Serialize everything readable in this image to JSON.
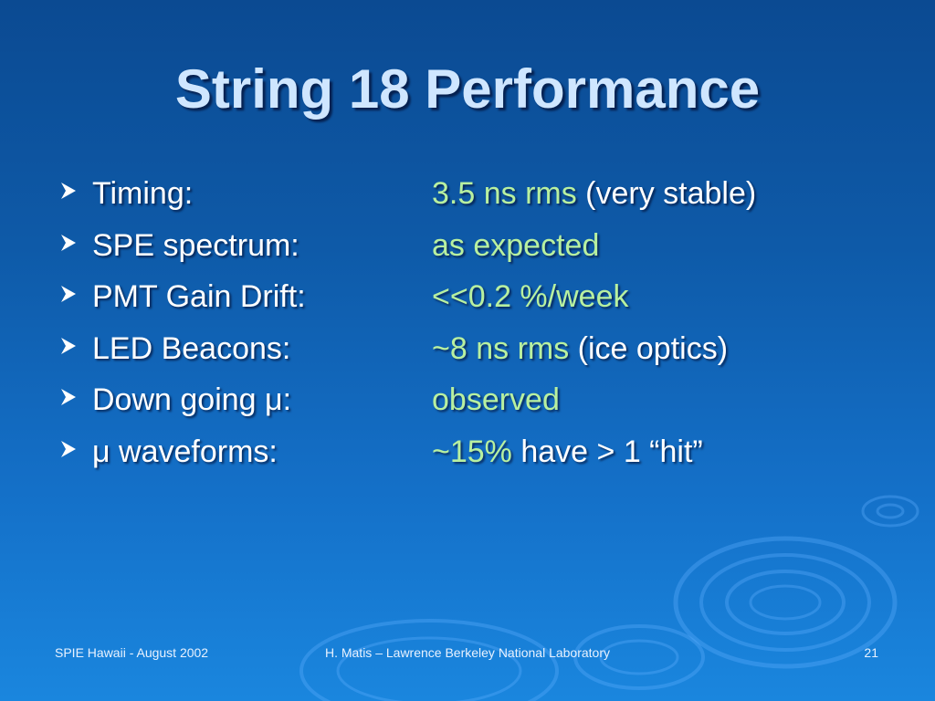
{
  "slide": {
    "title": "String 18 Performance",
    "items": [
      {
        "label": "Timing:",
        "value_highlight": "3.5 ns rms",
        "value_rest": " (very stable)"
      },
      {
        "label": "SPE spectrum:",
        "value_highlight": "as expected",
        "value_rest": ""
      },
      {
        "label": "PMT Gain Drift:",
        "value_highlight": "<<0.2 %/week",
        "value_rest": ""
      },
      {
        "label": "LED Beacons:",
        "value_highlight": "~8 ns rms",
        "value_rest": " (ice optics)"
      },
      {
        "label": "Down going μ:",
        "value_highlight": "observed",
        "value_rest": ""
      },
      {
        "label": "μ waveforms:",
        "value_highlight": "~15%",
        "value_rest": " have > 1 “hit”"
      }
    ],
    "bullet_icon": "arrow-bullet-icon",
    "colors": {
      "title": "#cfe6ff",
      "highlight": "#b8f0a0",
      "text": "#ffffff",
      "background": "#0e5aa8"
    }
  },
  "footer": {
    "left": "SPIE Hawaii - August 2002",
    "center": "H. Matis – Lawrence Berkeley National Laboratory",
    "page_number": "21"
  }
}
